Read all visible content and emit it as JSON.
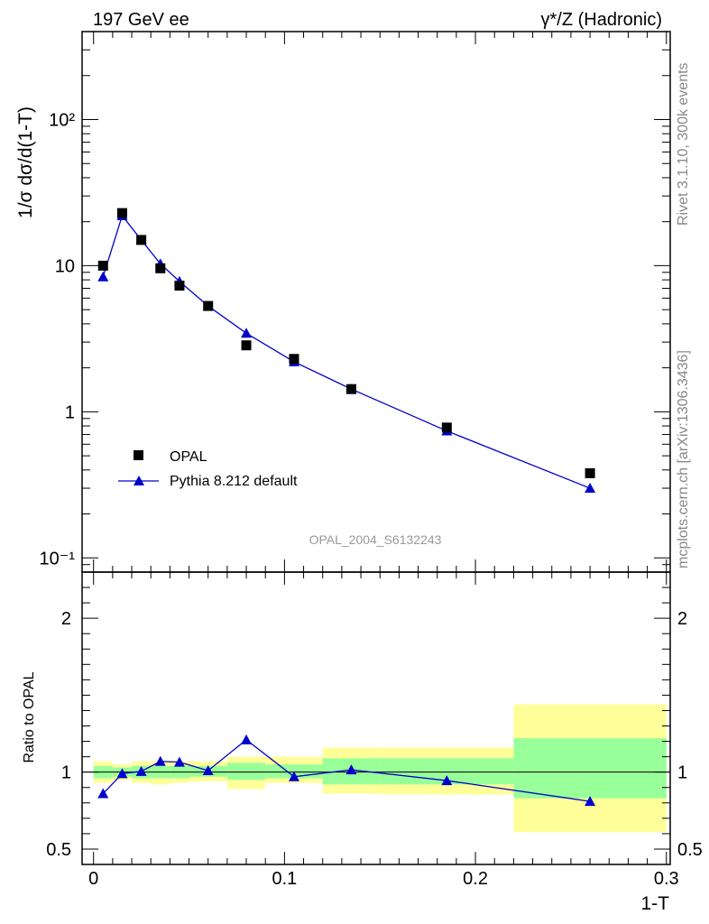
{
  "header": {
    "left_title": "197 GeV ee",
    "right_title": "γ*/Z (Hadronic)"
  },
  "side_labels": {
    "rivet": "Rivet 3.1.10,  300k events",
    "mcplots": "mcplots.cern.ch [arXiv:1306.3436]"
  },
  "chart_data": {
    "type": "scatter",
    "analysis_label": "OPAL_2004_S6132243",
    "xlabel": "1-T",
    "xlim": [
      -0.006,
      0.302
    ],
    "x_ticks": [
      "0",
      "0.1",
      "0.2",
      "0.3"
    ],
    "main": {
      "ylabel": "1/σ dσ/d(1-T)",
      "yscale": "log",
      "ylim": [
        0.08,
        400
      ],
      "y_ticks": [
        "10⁻¹",
        "1",
        "10",
        "10²"
      ],
      "legend": [
        "OPAL",
        "Pythia 8.212 default"
      ],
      "legend_position": "lower-left"
    },
    "ratio": {
      "ylabel": "Ratio to OPAL",
      "ylim": [
        0.4,
        2.3
      ],
      "y_ticks": [
        "0.5",
        "1",
        "2"
      ],
      "bands": [
        {
          "x0": 0.0,
          "x1": 0.01,
          "g_lo": 0.96,
          "g_hi": 1.04,
          "y_lo": 0.93,
          "y_hi": 1.07
        },
        {
          "x0": 0.01,
          "x1": 0.02,
          "g_lo": 0.97,
          "g_hi": 1.03,
          "y_lo": 0.95,
          "y_hi": 1.05
        },
        {
          "x0": 0.02,
          "x1": 0.03,
          "g_lo": 0.96,
          "g_hi": 1.04,
          "y_lo": 0.93,
          "y_hi": 1.07
        },
        {
          "x0": 0.03,
          "x1": 0.04,
          "g_lo": 0.96,
          "g_hi": 1.04,
          "y_lo": 0.92,
          "y_hi": 1.07
        },
        {
          "x0": 0.04,
          "x1": 0.05,
          "g_lo": 0.96,
          "g_hi": 1.04,
          "y_lo": 0.93,
          "y_hi": 1.07
        },
        {
          "x0": 0.05,
          "x1": 0.07,
          "g_lo": 0.97,
          "g_hi": 1.04,
          "y_lo": 0.94,
          "y_hi": 1.07
        },
        {
          "x0": 0.07,
          "x1": 0.09,
          "g_lo": 0.95,
          "g_hi": 1.06,
          "y_lo": 0.89,
          "y_hi": 1.1
        },
        {
          "x0": 0.09,
          "x1": 0.12,
          "g_lo": 0.96,
          "g_hi": 1.05,
          "y_lo": 0.93,
          "y_hi": 1.1
        },
        {
          "x0": 0.12,
          "x1": 0.15,
          "g_lo": 0.92,
          "g_hi": 1.09,
          "y_lo": 0.86,
          "y_hi": 1.16
        },
        {
          "x0": 0.15,
          "x1": 0.22,
          "g_lo": 0.92,
          "g_hi": 1.09,
          "y_lo": 0.855,
          "y_hi": 1.16
        },
        {
          "x0": 0.22,
          "x1": 0.3,
          "g_lo": 0.83,
          "g_hi": 1.22,
          "y_lo": 0.61,
          "y_hi": 1.44
        }
      ]
    },
    "series": [
      {
        "name": "OPAL",
        "marker": "square",
        "color": "#000000",
        "x": [
          0.005,
          0.015,
          0.025,
          0.035,
          0.045,
          0.06,
          0.08,
          0.105,
          0.135,
          0.185,
          0.26
        ],
        "y": [
          10.0,
          22.9,
          15.0,
          9.6,
          7.3,
          5.3,
          2.85,
          2.3,
          1.43,
          0.78,
          0.38
        ]
      },
      {
        "name": "Pythia 8.212 default",
        "marker": "triangle",
        "color": "#0000cc",
        "x": [
          0.005,
          0.015,
          0.025,
          0.035,
          0.045,
          0.06,
          0.08,
          0.105,
          0.135,
          0.185,
          0.26
        ],
        "y": [
          8.4,
          22.0,
          15.0,
          10.3,
          7.8,
          5.3,
          3.45,
          2.2,
          1.43,
          0.74,
          0.3
        ],
        "ratio": [
          0.86,
          0.99,
          1.005,
          1.07,
          1.065,
          1.01,
          1.21,
          0.97,
          1.015,
          0.945,
          0.81
        ]
      }
    ],
    "band_colors": {
      "outer": "#ffff99",
      "inner": "#99ff99"
    }
  }
}
